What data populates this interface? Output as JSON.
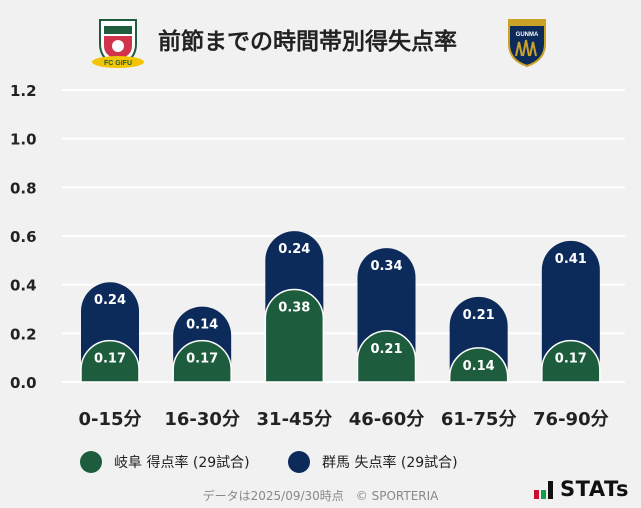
{
  "title": "前節までの時間帯別得失点率",
  "teams": {
    "home": {
      "logo_icon": "fc-gifu-crest",
      "logo_text": "FC GIFU"
    },
    "away": {
      "logo_icon": "thespa-gunma-crest",
      "logo_text": "GUNMA"
    }
  },
  "colors": {
    "scored": "#1d5c3c",
    "conceded": "#0d2b5a",
    "background": "#f1f1f1",
    "accent_red": "#c8102e"
  },
  "chart_data": {
    "type": "bar",
    "stacked": false,
    "overlapping": true,
    "title": "前節までの時間帯別得失点率",
    "categories": [
      "0-15分",
      "16-30分",
      "31-45分",
      "46-60分",
      "61-75分",
      "76-90分"
    ],
    "series": [
      {
        "name": "岐阜 得点率 (29試合)",
        "values": [
          0.17,
          0.17,
          0.38,
          0.21,
          0.14,
          0.17
        ]
      },
      {
        "name": "群馬 失点率 (29試合)",
        "values": [
          0.24,
          0.14,
          0.24,
          0.34,
          0.21,
          0.41
        ]
      }
    ],
    "yticks": [
      "0.0",
      "0.2",
      "0.4",
      "0.6",
      "0.8",
      "1.0",
      "1.2"
    ],
    "ylim": [
      0,
      1.2
    ],
    "grid": true,
    "legend_position": "bottom"
  },
  "legend": {
    "scored": "岐阜 得点率 (29試合)",
    "conceded": "群馬 失点率 (29試合)"
  },
  "footer": "データは2025/09/30時点　© SPORTERIA",
  "brand": "STATs"
}
